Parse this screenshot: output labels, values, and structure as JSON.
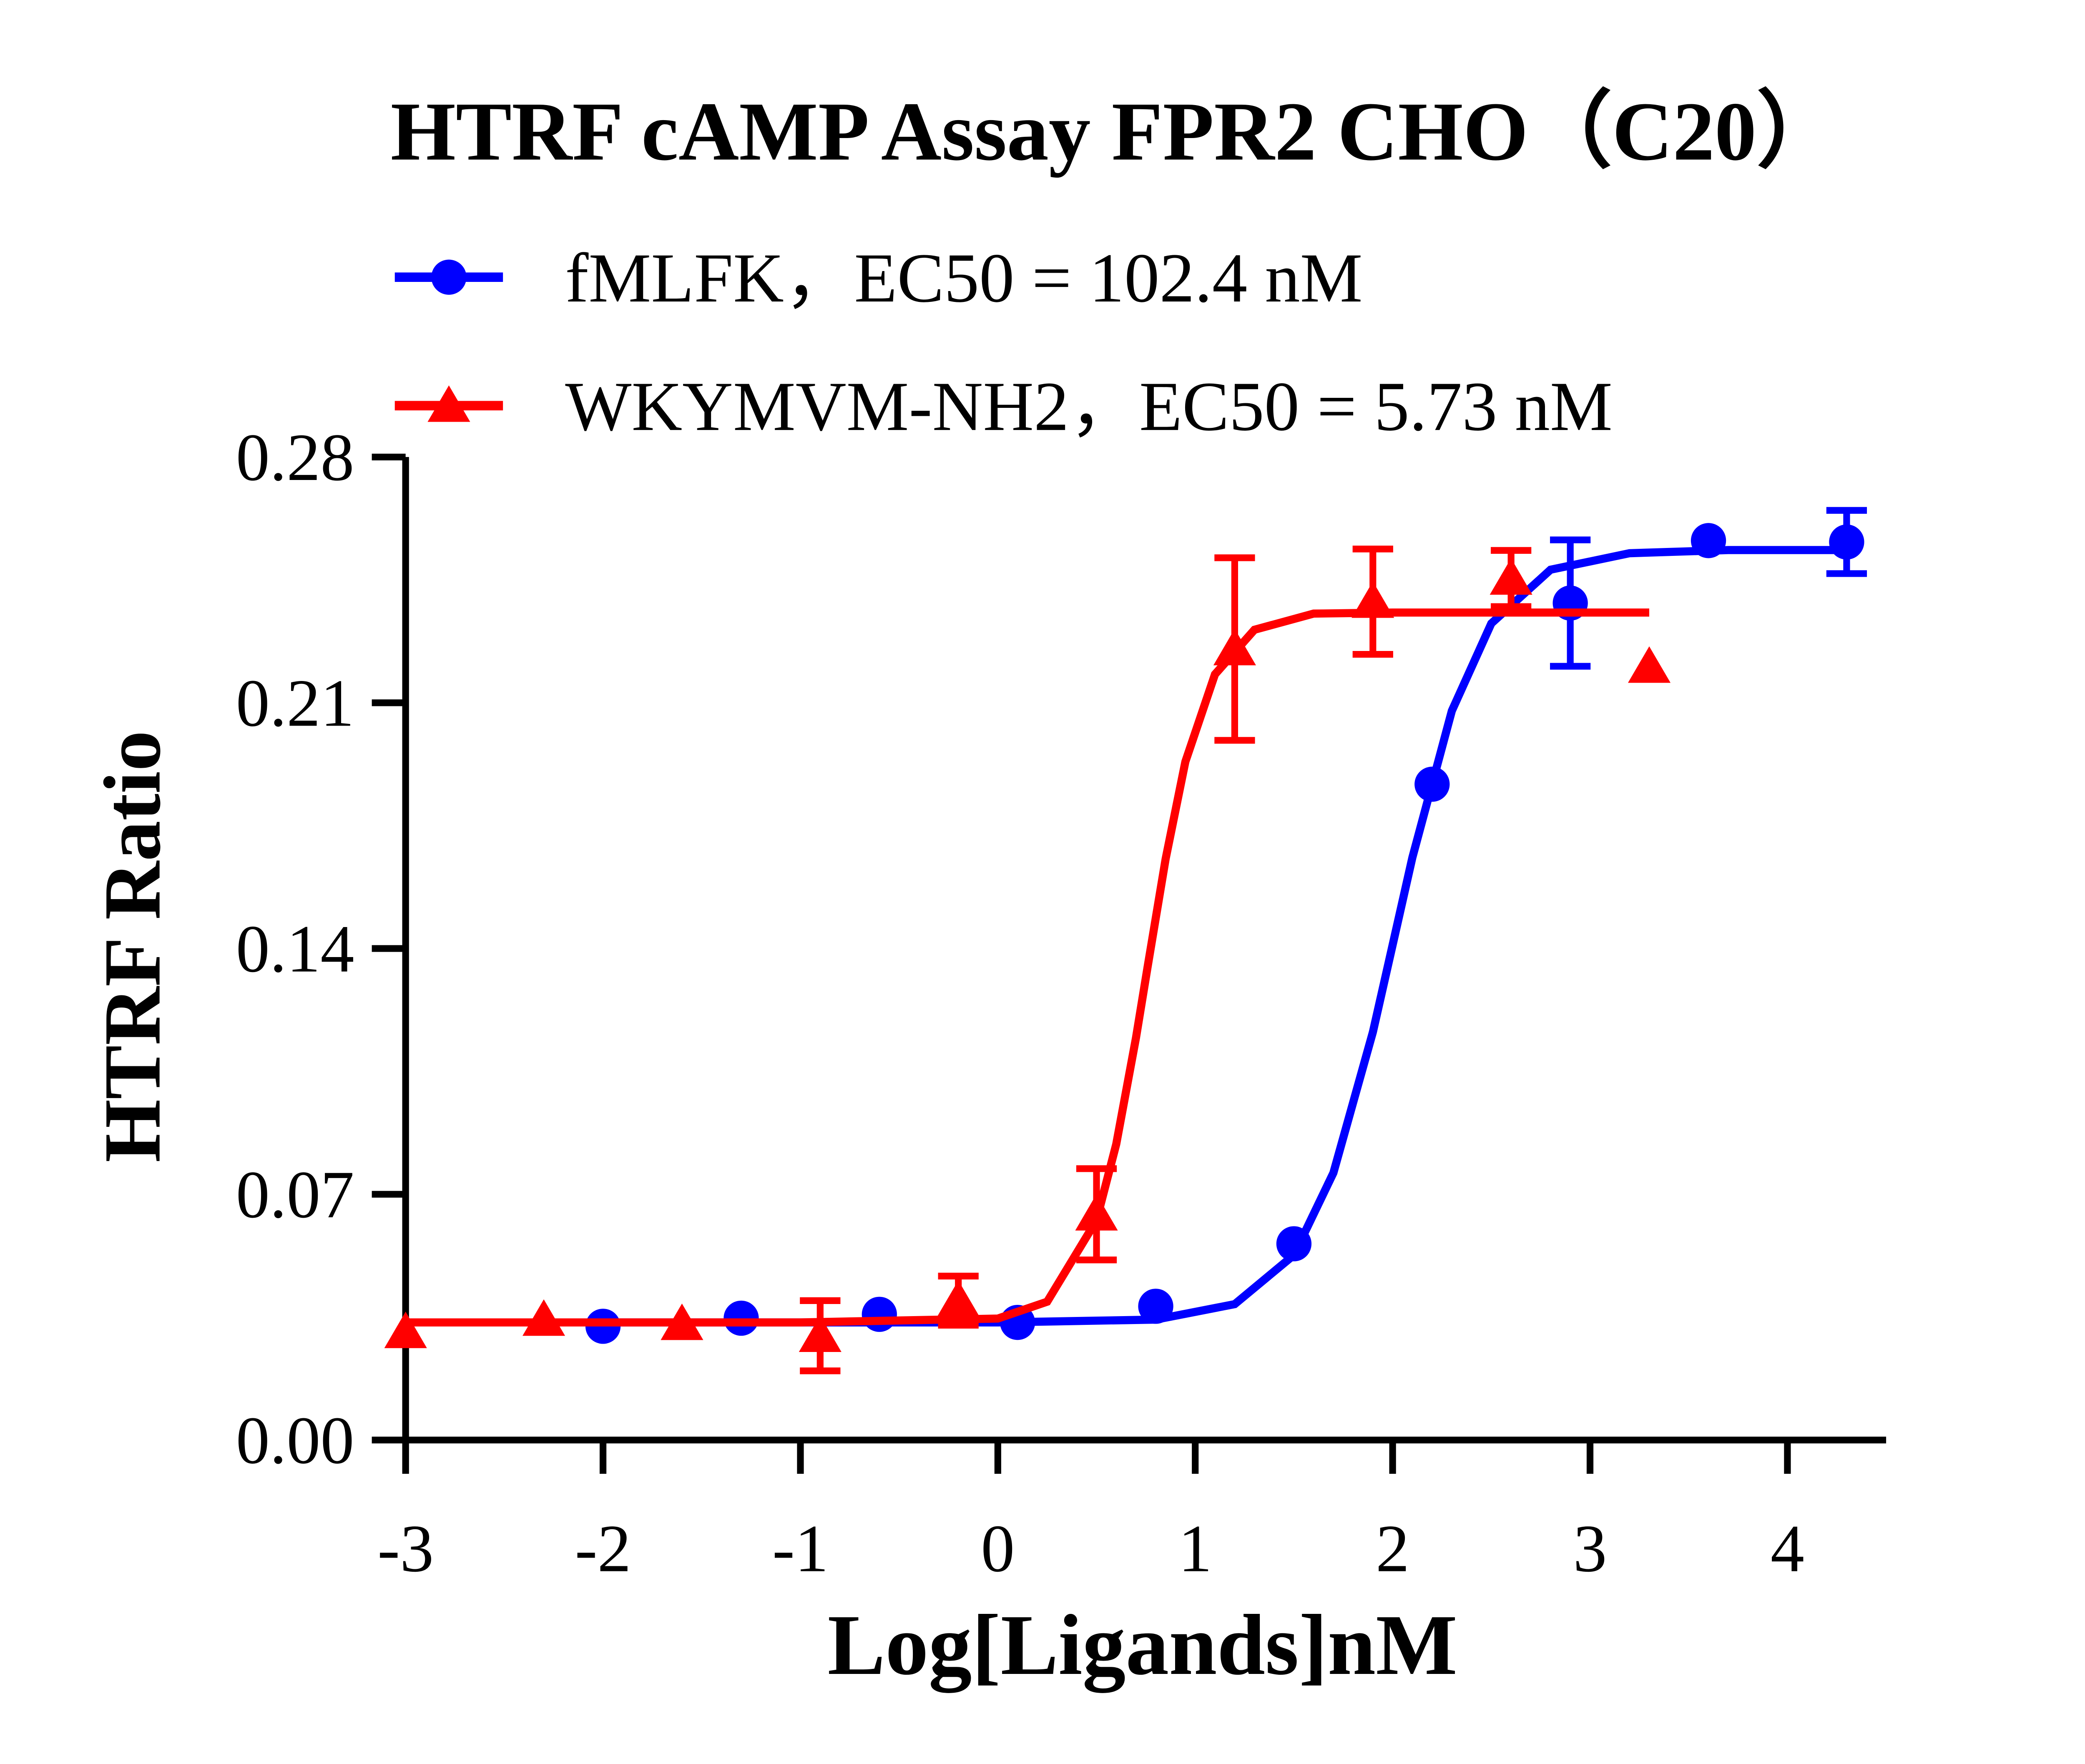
{
  "chart_data": {
    "type": "scatter",
    "title": "HTRF cAMP Assay FPR2 CHO（C20）",
    "x_label": "Log[Ligands]nM",
    "y_label": "HTRF Ratio",
    "xlim": [
      -3,
      4.5
    ],
    "xticks": [
      -3,
      -2,
      -1,
      0,
      1,
      2,
      3,
      4
    ],
    "ylim": [
      0,
      0.28
    ],
    "yticks": [
      {
        "value": 0,
        "label": "0.00"
      },
      0.07,
      0.14,
      0.21,
      0.28
    ],
    "legend": "top",
    "series": [
      {
        "name": "fMLFK，EC50 = 102.4 nM",
        "color": "#0000ff",
        "marker": "circle",
        "x": [
          -2,
          -1.3,
          -0.6,
          0.1,
          0.8,
          1.5,
          2.2,
          2.9,
          3.6,
          4.3
        ],
        "values": [
          0.0324,
          0.0347,
          0.0358,
          0.0335,
          0.0381,
          0.0559,
          0.1868,
          0.2384,
          0.2562,
          0.2558
        ],
        "errors": [
          null,
          null,
          null,
          null,
          null,
          null,
          null,
          0.018,
          null,
          0.009
        ],
        "curve": {
          "x": [
            -2,
            0,
            0.8,
            1.2,
            1.5,
            1.7,
            1.9,
            2.01,
            2.1,
            2.3,
            2.5,
            2.8,
            3.2,
            3.7,
            4.3
          ],
          "values": [
            0.0335,
            0.0335,
            0.0343,
            0.0387,
            0.0527,
            0.0761,
            0.1162,
            0.1435,
            0.1659,
            0.2077,
            0.2326,
            0.2479,
            0.2526,
            0.2535,
            0.2535
          ]
        }
      },
      {
        "name": "WKYMVM-NH2，EC50 = 5.73 nM",
        "color": "#ff0000",
        "marker": "triangle",
        "x": [
          -3,
          -2.3,
          -1.6,
          -0.9,
          -0.2,
          0.5,
          1.2,
          1.9,
          2.6,
          3.3
        ],
        "values": [
          0.0308,
          0.0343,
          0.0331,
          0.0297,
          0.0397,
          0.0643,
          0.2253,
          0.2388,
          0.2454,
          0.2203
        ],
        "errors": [
          null,
          null,
          null,
          0.01,
          0.007,
          0.013,
          0.026,
          0.015,
          0.008,
          null
        ],
        "curve": {
          "x": [
            -3,
            -1,
            0,
            0.25,
            0.5,
            0.6,
            0.7,
            0.758,
            0.85,
            0.95,
            1.1,
            1.3,
            1.6,
            2,
            3.3
          ],
          "values": [
            0.0335,
            0.0335,
            0.0346,
            0.0394,
            0.0626,
            0.0843,
            0.1146,
            0.1345,
            0.1655,
            0.1932,
            0.2181,
            0.2308,
            0.2354,
            0.2357,
            0.2357
          ]
        }
      }
    ]
  }
}
